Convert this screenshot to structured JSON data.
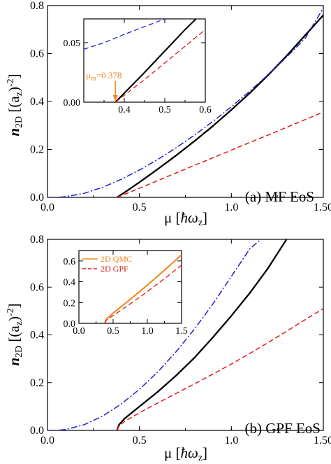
{
  "colors": {
    "black": "#000000",
    "blue": "#1f1fd0",
    "red": "#e01818",
    "orange": "#f0891e"
  },
  "chart_data": [
    {
      "type": "line",
      "panel_label": "(a) MF EoS",
      "xlabel_prefix": "μ [",
      "xlabel_hbar": "ħ",
      "xlabel_omega": "ω",
      "xlabel_sub": "z",
      "xlabel_suffix": "]",
      "ylabel_n": "n",
      "ylabel_nsub": "2D",
      "ylabel_mid": " [(a",
      "ylabel_asub": "z",
      "ylabel_close": ")",
      "ylabel_exp": "-2",
      "ylabel_end": "]",
      "xlim": [
        0,
        1.5
      ],
      "ylim": [
        0,
        0.8
      ],
      "x_ticks": [
        "0.0",
        "0.5",
        "1.0",
        "1.50"
      ],
      "y_ticks": [
        "0.0",
        "0.2",
        "0.4",
        "0.6",
        "0.8"
      ],
      "series": [
        {
          "style": "solid",
          "color": "#000000",
          "x": [
            0.378,
            0.42,
            0.5,
            0.6,
            0.7,
            0.8,
            0.9,
            1.0,
            1.1,
            1.2,
            1.3,
            1.4,
            1.5
          ],
          "y": [
            0.0,
            0.021,
            0.063,
            0.118,
            0.175,
            0.235,
            0.298,
            0.365,
            0.435,
            0.51,
            0.59,
            0.675,
            0.76
          ]
        },
        {
          "style": "dashdot",
          "color": "#1f1fd0",
          "x": [
            0.0,
            0.05,
            0.1,
            0.2,
            0.3,
            0.4,
            0.5,
            0.6,
            0.7,
            0.8,
            0.9,
            1.0,
            1.1,
            1.2,
            1.3,
            1.4,
            1.5
          ],
          "y": [
            0.0,
            0.0,
            0.003,
            0.017,
            0.042,
            0.075,
            0.114,
            0.158,
            0.207,
            0.26,
            0.317,
            0.378,
            0.443,
            0.512,
            0.585,
            0.662,
            0.79
          ]
        },
        {
          "style": "dashed",
          "color": "#e01818",
          "x": [
            0.378,
            0.5,
            0.6,
            0.7,
            0.8,
            0.9,
            1.0,
            1.1,
            1.2,
            1.3,
            1.4,
            1.5
          ],
          "y": [
            0.0,
            0.038,
            0.07,
            0.102,
            0.134,
            0.165,
            0.197,
            0.229,
            0.26,
            0.292,
            0.324,
            0.356
          ]
        }
      ],
      "inset": {
        "xlim": [
          0.3,
          0.6
        ],
        "ylim": [
          0,
          0.07
        ],
        "x_ticks": [
          "0.4",
          "0.5",
          "0.6"
        ],
        "y_ticks": [
          "0.00",
          "0.05"
        ],
        "annotation_prefix": "μ",
        "annotation_sub": "m",
        "annotation_value": "=0.378",
        "annotation_x": 0.378,
        "series": [
          {
            "style": "solid",
            "color": "#000000",
            "x": [
              0.378,
              0.45,
              0.5,
              0.55,
              0.577
            ],
            "y": [
              0.0,
              0.025,
              0.043,
              0.061,
              0.07
            ]
          },
          {
            "style": "dashed",
            "color": "#1f1fd0",
            "x": [
              0.3,
              0.35,
              0.4,
              0.45,
              0.5
            ],
            "y": [
              0.0445,
              0.05,
              0.057,
              0.0635,
              0.07
            ]
          },
          {
            "style": "dashed",
            "color": "#e01818",
            "x": [
              0.378,
              0.45,
              0.5,
              0.55,
              0.6
            ],
            "y": [
              0.0,
              0.019,
              0.033,
              0.047,
              0.061
            ]
          }
        ]
      }
    },
    {
      "type": "line",
      "panel_label": "(b) GPF EoS",
      "xlabel_prefix": "μ [",
      "xlabel_hbar": "ħ",
      "xlabel_omega": "ω",
      "xlabel_sub": "z",
      "xlabel_suffix": "]",
      "ylabel_n": "n",
      "ylabel_nsub": "2D",
      "ylabel_mid": " [(a",
      "ylabel_asub": "z",
      "ylabel_close": ")",
      "ylabel_exp": "-2",
      "ylabel_end": "]",
      "xlim": [
        0,
        1.5
      ],
      "ylim": [
        0,
        0.8
      ],
      "x_ticks": [
        "0.0",
        "0.5",
        "1.0",
        "1.50"
      ],
      "y_ticks": [
        "0.0",
        "0.2",
        "0.4",
        "0.6",
        "0.8"
      ],
      "series": [
        {
          "style": "solid",
          "color": "#000000",
          "x": [
            0.378,
            0.39,
            0.42,
            0.5,
            0.6,
            0.7,
            0.8,
            0.9,
            1.0,
            1.1,
            1.2,
            1.3
          ],
          "y": [
            0.0,
            0.025,
            0.05,
            0.1,
            0.162,
            0.23,
            0.305,
            0.39,
            0.48,
            0.575,
            0.68,
            0.8
          ]
        },
        {
          "style": "dashdot",
          "color": "#1f1fd0",
          "x": [
            0.0,
            0.05,
            0.1,
            0.2,
            0.3,
            0.4,
            0.5,
            0.6,
            0.7,
            0.8,
            0.9,
            1.0,
            1.1,
            1.16
          ],
          "y": [
            0.0,
            0.0,
            0.004,
            0.024,
            0.06,
            0.11,
            0.172,
            0.245,
            0.33,
            0.425,
            0.53,
            0.645,
            0.76,
            0.8
          ]
        },
        {
          "style": "dashed",
          "color": "#e01818",
          "x": [
            0.378,
            0.39,
            0.42,
            0.5,
            0.6,
            0.7,
            0.8,
            0.9,
            1.0,
            1.1,
            1.2,
            1.3,
            1.4,
            1.5
          ],
          "y": [
            0.0,
            0.02,
            0.038,
            0.074,
            0.115,
            0.155,
            0.195,
            0.236,
            0.278,
            0.322,
            0.368,
            0.415,
            0.463,
            0.51
          ]
        }
      ],
      "inset": {
        "xlim": [
          0,
          1.5
        ],
        "ylim": [
          0,
          0.7
        ],
        "x_ticks": [
          "0.0",
          "0.5",
          "1.0",
          "1.5"
        ],
        "y_ticks": [
          "0.0",
          "0.2",
          "0.4",
          "0.6"
        ],
        "legend": [
          {
            "label": "2D QMC",
            "style": "solid",
            "color": "#f0891e"
          },
          {
            "label": "2D GPF",
            "style": "dashed",
            "color": "#e01818"
          }
        ],
        "series": [
          {
            "style": "solid",
            "color": "#f0891e",
            "x": [
              0.378,
              0.4,
              0.5,
              0.6,
              0.7,
              0.8,
              0.9,
              1.0,
              1.1,
              1.2,
              1.3,
              1.4,
              1.5
            ],
            "y": [
              0.0,
              0.04,
              0.098,
              0.152,
              0.204,
              0.258,
              0.312,
              0.368,
              0.424,
              0.482,
              0.54,
              0.6,
              0.66
            ]
          },
          {
            "style": "dashed",
            "color": "#e01818",
            "x": [
              0.378,
              0.4,
              0.5,
              0.6,
              0.7,
              0.8,
              0.9,
              1.0,
              1.1,
              1.2,
              1.3,
              1.4,
              1.5
            ],
            "y": [
              0.0,
              0.03,
              0.075,
              0.12,
              0.165,
              0.21,
              0.258,
              0.305,
              0.355,
              0.405,
              0.455,
              0.508,
              0.56
            ]
          }
        ]
      }
    }
  ]
}
